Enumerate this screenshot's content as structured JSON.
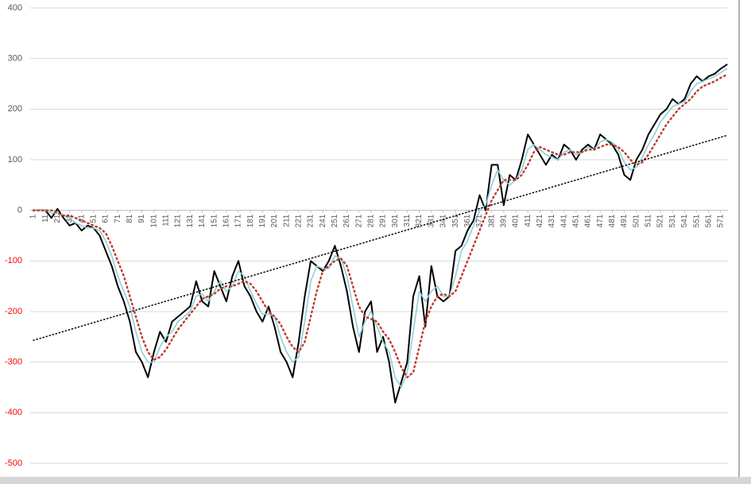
{
  "chart_data": {
    "type": "line",
    "xlim": [
      1,
      577
    ],
    "ylim": [
      -500,
      400
    ],
    "xticks": [
      1,
      11,
      21,
      31,
      41,
      51,
      61,
      71,
      81,
      91,
      101,
      111,
      121,
      131,
      141,
      151,
      161,
      171,
      181,
      191,
      201,
      211,
      221,
      231,
      241,
      251,
      261,
      271,
      281,
      291,
      301,
      311,
      321,
      331,
      341,
      351,
      361,
      371,
      381,
      391,
      401,
      411,
      421,
      431,
      441,
      451,
      461,
      471,
      481,
      491,
      501,
      511,
      521,
      531,
      541,
      551,
      561,
      571
    ],
    "yticks": [
      -500,
      -400,
      -300,
      -200,
      -100,
      0,
      100,
      200,
      300,
      400
    ],
    "negative_tick_color": "#ff0000",
    "grid": true,
    "x": [
      1,
      6,
      11,
      16,
      21,
      26,
      31,
      36,
      41,
      46,
      51,
      56,
      61,
      66,
      71,
      76,
      81,
      86,
      91,
      96,
      101,
      106,
      111,
      116,
      121,
      126,
      131,
      136,
      141,
      146,
      151,
      156,
      161,
      166,
      171,
      176,
      181,
      186,
      191,
      196,
      201,
      206,
      211,
      216,
      221,
      226,
      231,
      236,
      241,
      246,
      251,
      256,
      261,
      266,
      271,
      276,
      281,
      286,
      291,
      296,
      301,
      306,
      311,
      316,
      321,
      326,
      331,
      336,
      341,
      346,
      351,
      356,
      361,
      366,
      371,
      376,
      381,
      386,
      391,
      396,
      401,
      406,
      411,
      416,
      421,
      426,
      431,
      436,
      441,
      446,
      451,
      456,
      461,
      466,
      471,
      476,
      481,
      486,
      491,
      496,
      501,
      506,
      511,
      516,
      521,
      526,
      531,
      536,
      541,
      546,
      551,
      556,
      561,
      566,
      571,
      576
    ],
    "series": [
      {
        "color": "#000000",
        "style": "solid",
        "width": 2,
        "values": [
          0,
          0,
          0,
          -15,
          3,
          -15,
          -30,
          -25,
          -40,
          -30,
          -35,
          -50,
          -80,
          -110,
          -150,
          -180,
          -220,
          -280,
          -300,
          -330,
          -280,
          -240,
          -260,
          -220,
          -210,
          -200,
          -190,
          -140,
          -180,
          -190,
          -120,
          -150,
          -180,
          -130,
          -100,
          -150,
          -170,
          -200,
          -220,
          -190,
          -230,
          -280,
          -300,
          -330,
          -260,
          -170,
          -100,
          -110,
          -120,
          -100,
          -70,
          -110,
          -160,
          -230,
          -280,
          -200,
          -180,
          -280,
          -250,
          -300,
          -380,
          -340,
          -300,
          -170,
          -130,
          -230,
          -110,
          -170,
          -180,
          -170,
          -80,
          -70,
          -40,
          -20,
          30,
          0,
          90,
          90,
          10,
          70,
          60,
          100,
          150,
          130,
          110,
          90,
          110,
          100,
          130,
          120,
          100,
          120,
          130,
          120,
          150,
          140,
          130,
          110,
          70,
          60,
          100,
          120,
          150,
          170,
          190,
          200,
          220,
          210,
          220,
          250,
          265,
          255,
          265,
          270,
          280,
          288
        ]
      },
      {
        "color": "#8fd0dc",
        "style": "solid",
        "width": 1.6,
        "values": [
          0,
          0,
          0,
          -5,
          -5,
          -10,
          -15,
          -25,
          -30,
          -35,
          -35,
          -40,
          -60,
          -90,
          -130,
          -160,
          -190,
          -240,
          -280,
          -300,
          -300,
          -270,
          -250,
          -240,
          -220,
          -210,
          -200,
          -170,
          -165,
          -180,
          -160,
          -140,
          -160,
          -150,
          -120,
          -130,
          -160,
          -185,
          -205,
          -205,
          -210,
          -250,
          -280,
          -300,
          -290,
          -220,
          -140,
          -110,
          -115,
          -115,
          -90,
          -95,
          -130,
          -190,
          -250,
          -220,
          -200,
          -230,
          -260,
          -280,
          -330,
          -350,
          -320,
          -240,
          -160,
          -180,
          -160,
          -150,
          -170,
          -170,
          -130,
          -80,
          -60,
          -30,
          0,
          10,
          50,
          80,
          60,
          50,
          60,
          80,
          120,
          130,
          120,
          110,
          105,
          100,
          115,
          120,
          110,
          115,
          125,
          120,
          135,
          140,
          135,
          120,
          95,
          80,
          85,
          105,
          130,
          150,
          175,
          190,
          205,
          210,
          215,
          235,
          250,
          255,
          260,
          265,
          272,
          280
        ]
      },
      {
        "color": "#c0392b",
        "style": "dotted",
        "width": 2.4,
        "values": [
          0,
          0,
          0,
          0,
          -5,
          -10,
          -10,
          -15,
          -20,
          -25,
          -30,
          -35,
          -45,
          -70,
          -100,
          -130,
          -170,
          -210,
          -250,
          -280,
          -295,
          -290,
          -275,
          -255,
          -235,
          -220,
          -205,
          -190,
          -175,
          -170,
          -165,
          -155,
          -150,
          -150,
          -145,
          -140,
          -145,
          -160,
          -180,
          -200,
          -210,
          -225,
          -250,
          -270,
          -280,
          -260,
          -210,
          -160,
          -120,
          -110,
          -100,
          -95,
          -110,
          -150,
          -190,
          -210,
          -215,
          -220,
          -240,
          -255,
          -280,
          -310,
          -330,
          -320,
          -270,
          -220,
          -190,
          -170,
          -165,
          -170,
          -160,
          -130,
          -100,
          -70,
          -40,
          -10,
          20,
          40,
          60,
          60,
          60,
          70,
          90,
          115,
          125,
          120,
          115,
          110,
          110,
          115,
          115,
          115,
          120,
          120,
          125,
          130,
          130,
          125,
          115,
          100,
          90,
          95,
          110,
          130,
          150,
          170,
          185,
          200,
          210,
          220,
          235,
          245,
          250,
          255,
          262,
          268
        ]
      },
      {
        "color": "#000000",
        "style": "dotted",
        "width": 1.5,
        "x": [
          1,
          576
        ],
        "values": [
          -257,
          148
        ]
      }
    ]
  }
}
